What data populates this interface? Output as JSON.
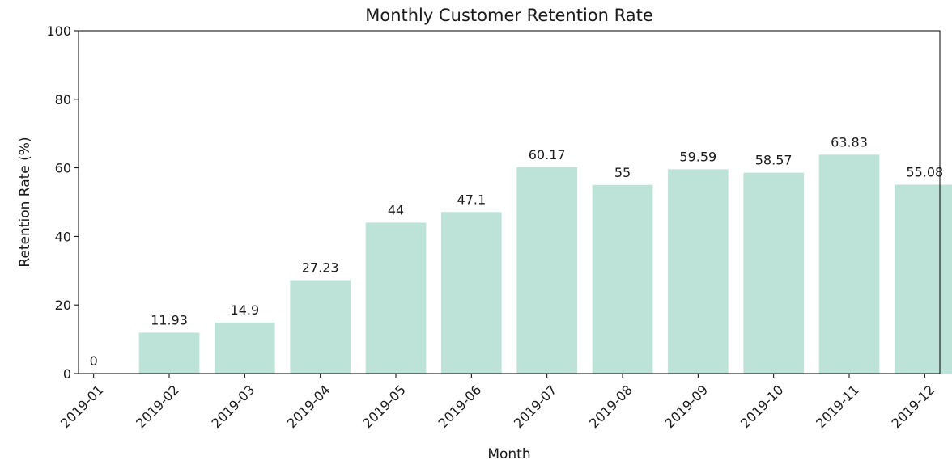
{
  "chart_data": {
    "type": "bar",
    "title": "Monthly Customer Retention Rate",
    "xlabel": "Month",
    "ylabel": "Retention Rate (%)",
    "categories": [
      "2019-01",
      "2019-02",
      "2019-03",
      "2019-04",
      "2019-05",
      "2019-06",
      "2019-07",
      "2019-08",
      "2019-09",
      "2019-10",
      "2019-11",
      "2019-12"
    ],
    "values": [
      0,
      11.93,
      14.9,
      27.23,
      44,
      47.1,
      60.17,
      55,
      59.59,
      58.57,
      63.83,
      55.08
    ],
    "value_labels": [
      "0",
      "11.93",
      "14.9",
      "27.23",
      "44",
      "47.1",
      "60.17",
      "55",
      "59.59",
      "58.57",
      "63.83",
      "55.08"
    ],
    "ylim": [
      0,
      100
    ],
    "yticks": [
      0,
      20,
      40,
      60,
      80,
      100
    ],
    "grid": false,
    "x_tick_rotation_deg": 45,
    "bar_color": "#bde3d8"
  }
}
